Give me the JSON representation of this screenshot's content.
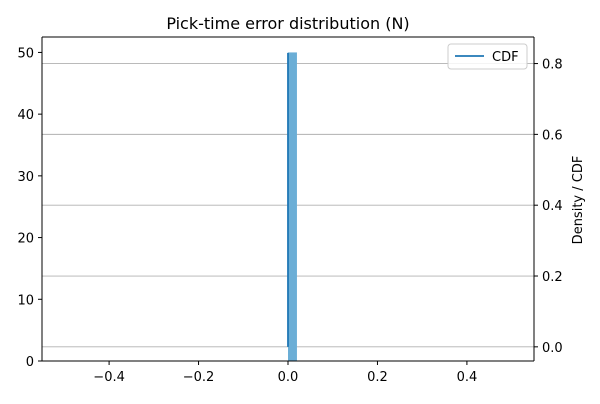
{
  "chart_data": {
    "type": "bar",
    "title": "Pick-time error distribution (N)",
    "xlabel": "",
    "ylabel_left": "",
    "ylabel_right": "Density / CDF",
    "xlim": [
      -0.55,
      0.55
    ],
    "ylim_left": [
      0,
      52.5
    ],
    "ylim_right": [
      -0.04,
      0.875
    ],
    "x_ticks": [
      -0.4,
      -0.2,
      0.0,
      0.2,
      0.4
    ],
    "x_tick_labels": [
      "−0.4",
      "−0.2",
      "0.0",
      "0.2",
      "0.4"
    ],
    "y_left_ticks": [
      0,
      10,
      20,
      30,
      40,
      50
    ],
    "y_left_tick_labels": [
      "0",
      "10",
      "20",
      "30",
      "40",
      "50"
    ],
    "y_right_ticks": [
      0.0,
      0.2,
      0.4,
      0.6,
      0.8
    ],
    "y_right_tick_labels": [
      "0.0",
      "0.2",
      "0.4",
      "0.6",
      "0.8"
    ],
    "grid": "horizontal lines at right-axis ticks",
    "histogram": {
      "bins": [
        {
          "x0": 0.0,
          "x1": 0.02,
          "value": 50
        }
      ],
      "color": "#6baed6"
    },
    "series": [
      {
        "name": "CDF",
        "x": [
          0.0,
          0.0
        ],
        "y": [
          0.0,
          0.83
        ],
        "color": "#1f77b4"
      }
    ],
    "legend": {
      "placement": "top-right",
      "entries": [
        "CDF"
      ]
    }
  },
  "colors": {
    "axis": "#000000",
    "grid": "#b0b0b0",
    "bar": "#6baed6",
    "line": "#1f77b4"
  }
}
